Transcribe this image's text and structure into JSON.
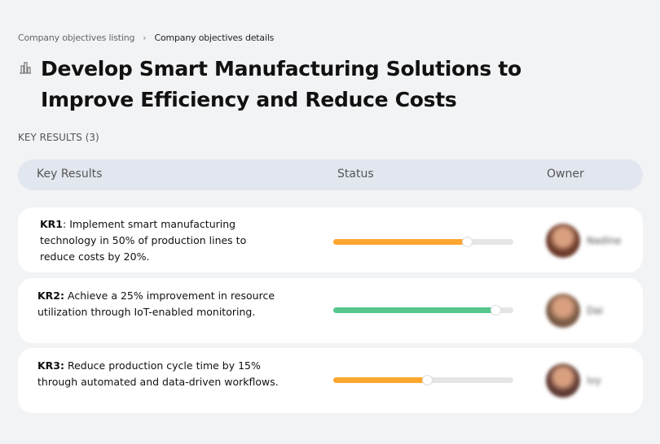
{
  "breadcrumb": {
    "items": [
      "Company objectives listing",
      "Company objectives details"
    ]
  },
  "title": "Develop Smart Manufacturing Solutions to Improve Efficiency and Reduce Costs",
  "key_results_count_label": "KEY RESULTS (3)",
  "table": {
    "headers": [
      "Key Results",
      "Status",
      "Owner"
    ]
  },
  "rows": [
    {
      "id": "KR1",
      "text": ": Implement smart manufacturing technology in 50% of production lines to reduce costs by 20%.",
      "progress": 74,
      "color": "#ffa630",
      "owner": "Nadine",
      "avatar_color": "#6b3a2a"
    },
    {
      "id": "KR2:",
      "text": " Achieve a 25% improvement in resource utilization through IoT-enabled monitoring.",
      "progress": 90,
      "color": "#55c88d",
      "owner": "Dai",
      "avatar_color": "#7a5a45"
    },
    {
      "id": "KR3:",
      "text": " Reduce production cycle time by 15% through automated and data-driven workflows.",
      "progress": 52,
      "color": "#ffa630",
      "owner": "Ivy",
      "avatar_color": "#5e3a33"
    }
  ]
}
